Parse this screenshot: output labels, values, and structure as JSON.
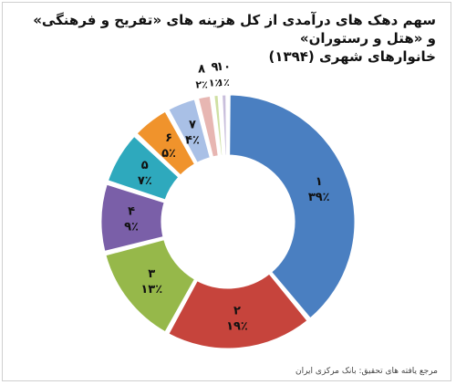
{
  "chart_data": {
    "type": "pie",
    "title_lines": [
      "سهم دهک های درآمدی از کل هزینه های «تفریح و فرهنگی» و «هتل و رستوران»",
      "خانوارهای شهری (۱۳۹۴)"
    ],
    "categories": [
      "۱",
      "۲",
      "۳",
      "۴",
      "۵",
      "۶",
      "۷",
      "۸",
      "۹",
      "۱۰"
    ],
    "values": [
      39,
      19,
      13,
      9,
      7,
      5,
      4,
      2,
      1,
      1
    ],
    "value_labels": [
      "۳۹٪",
      "۱۹٪",
      "۱۳٪",
      "۹٪",
      "۷٪",
      "۵٪",
      "۴٪",
      "۲٪",
      "۱٪",
      "۱٪"
    ],
    "colors": [
      "#4a7fc1",
      "#c6443c",
      "#96b84a",
      "#7a5fa8",
      "#2ea9bd",
      "#f0932c",
      "#a9c0e6",
      "#e7b6b2",
      "#cfe0a3",
      "#c9bfdc"
    ],
    "donut": true,
    "source": "مرجع یافته های تحقیق: بانک مرکزی ایران"
  }
}
